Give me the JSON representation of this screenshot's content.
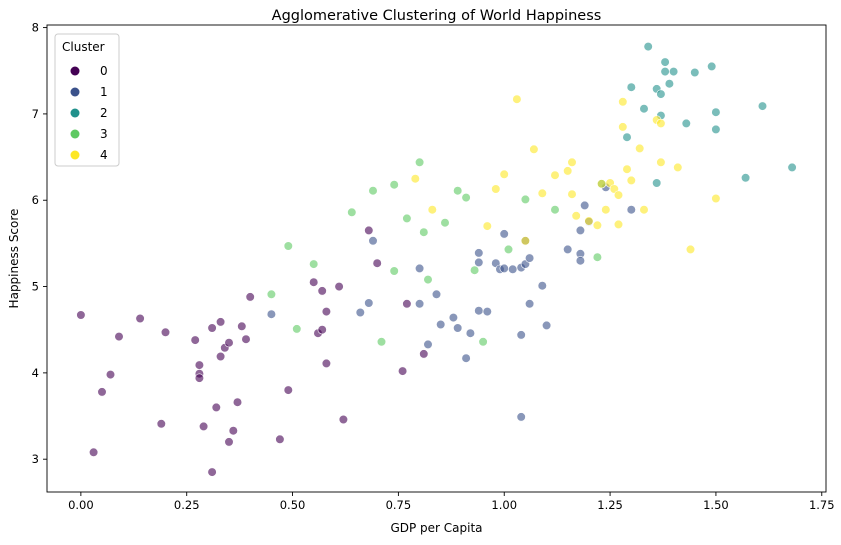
{
  "chart_data": {
    "type": "scatter",
    "title": "Agglomerative Clustering of World Happiness",
    "xlabel": "GDP per Capita",
    "ylabel": "Happiness Score",
    "xlim": [
      -0.08,
      1.76
    ],
    "ylim": [
      2.62,
      8.03
    ],
    "xticks": [
      0.0,
      0.25,
      0.5,
      0.75,
      1.0,
      1.25,
      1.5,
      1.75
    ],
    "xtick_labels": [
      "0.00",
      "0.25",
      "0.50",
      "0.75",
      "1.00",
      "1.25",
      "1.50",
      "1.75"
    ],
    "yticks": [
      3,
      4,
      5,
      6,
      7,
      8
    ],
    "ytick_labels": [
      "3",
      "4",
      "5",
      "6",
      "7",
      "8"
    ],
    "grid": false,
    "legend": {
      "title": "Cluster",
      "placement": "top-left"
    },
    "series": [
      {
        "name": "0",
        "color": "#440154",
        "points": [
          [
            0.0,
            4.67
          ],
          [
            0.03,
            3.08
          ],
          [
            0.05,
            3.78
          ],
          [
            0.07,
            3.98
          ],
          [
            0.09,
            4.42
          ],
          [
            0.14,
            4.63
          ],
          [
            0.19,
            3.41
          ],
          [
            0.2,
            4.47
          ],
          [
            0.27,
            4.38
          ],
          [
            0.28,
            4.09
          ],
          [
            0.28,
            3.99
          ],
          [
            0.28,
            3.94
          ],
          [
            0.29,
            3.38
          ],
          [
            0.31,
            4.52
          ],
          [
            0.31,
            2.85
          ],
          [
            0.32,
            3.6
          ],
          [
            0.33,
            4.59
          ],
          [
            0.33,
            4.19
          ],
          [
            0.34,
            4.29
          ],
          [
            0.35,
            4.35
          ],
          [
            0.35,
            3.2
          ],
          [
            0.36,
            3.33
          ],
          [
            0.37,
            3.66
          ],
          [
            0.38,
            4.54
          ],
          [
            0.39,
            4.39
          ],
          [
            0.4,
            4.88
          ],
          [
            0.47,
            3.23
          ],
          [
            0.49,
            3.8
          ],
          [
            0.55,
            5.05
          ],
          [
            0.56,
            4.46
          ],
          [
            0.57,
            4.5
          ],
          [
            0.57,
            4.95
          ],
          [
            0.58,
            4.71
          ],
          [
            0.58,
            4.11
          ],
          [
            0.61,
            5.0
          ],
          [
            0.62,
            3.46
          ],
          [
            0.68,
            5.65
          ],
          [
            0.7,
            5.27
          ],
          [
            0.76,
            4.02
          ],
          [
            0.77,
            4.8
          ],
          [
            0.81,
            4.22
          ]
        ]
      },
      {
        "name": "1",
        "color": "#3b528b",
        "points": [
          [
            0.45,
            4.68
          ],
          [
            0.66,
            4.7
          ],
          [
            0.68,
            4.81
          ],
          [
            0.69,
            5.53
          ],
          [
            0.8,
            5.21
          ],
          [
            0.8,
            4.8
          ],
          [
            0.82,
            4.33
          ],
          [
            0.84,
            4.91
          ],
          [
            0.85,
            4.56
          ],
          [
            0.88,
            4.64
          ],
          [
            0.89,
            4.52
          ],
          [
            0.91,
            4.17
          ],
          [
            0.92,
            4.46
          ],
          [
            0.94,
            5.39
          ],
          [
            0.94,
            5.28
          ],
          [
            0.94,
            4.72
          ],
          [
            0.96,
            4.71
          ],
          [
            0.98,
            5.27
          ],
          [
            0.99,
            5.2
          ],
          [
            1.0,
            5.61
          ],
          [
            1.0,
            5.21
          ],
          [
            1.02,
            5.2
          ],
          [
            1.04,
            5.22
          ],
          [
            1.04,
            4.44
          ],
          [
            1.04,
            3.49
          ],
          [
            1.05,
            5.26
          ],
          [
            1.05,
            5.53
          ],
          [
            1.06,
            5.33
          ],
          [
            1.06,
            4.8
          ],
          [
            1.09,
            5.01
          ],
          [
            1.1,
            4.55
          ],
          [
            1.15,
            5.43
          ],
          [
            1.18,
            5.38
          ],
          [
            1.18,
            5.3
          ],
          [
            1.18,
            5.65
          ],
          [
            1.19,
            5.94
          ],
          [
            1.2,
            5.75
          ],
          [
            1.24,
            6.15
          ],
          [
            1.3,
            5.89
          ]
        ]
      },
      {
        "name": "2",
        "color": "#21918c",
        "points": [
          [
            1.23,
            6.19
          ],
          [
            1.29,
            6.73
          ],
          [
            1.3,
            7.31
          ],
          [
            1.33,
            7.06
          ],
          [
            1.34,
            7.78
          ],
          [
            1.36,
            7.29
          ],
          [
            1.36,
            6.2
          ],
          [
            1.37,
            7.23
          ],
          [
            1.37,
            6.98
          ],
          [
            1.38,
            7.6
          ],
          [
            1.38,
            7.49
          ],
          [
            1.39,
            7.35
          ],
          [
            1.4,
            7.49
          ],
          [
            1.43,
            6.89
          ],
          [
            1.45,
            7.48
          ],
          [
            1.49,
            7.55
          ],
          [
            1.5,
            7.02
          ],
          [
            1.5,
            6.82
          ],
          [
            1.57,
            6.26
          ],
          [
            1.61,
            7.09
          ],
          [
            1.68,
            6.38
          ]
        ]
      },
      {
        "name": "3",
        "color": "#5ec962",
        "points": [
          [
            0.45,
            4.91
          ],
          [
            0.49,
            5.47
          ],
          [
            0.51,
            4.51
          ],
          [
            0.55,
            5.26
          ],
          [
            0.64,
            5.86
          ],
          [
            0.69,
            6.11
          ],
          [
            0.71,
            4.36
          ],
          [
            0.74,
            5.18
          ],
          [
            0.74,
            6.18
          ],
          [
            0.77,
            5.79
          ],
          [
            0.8,
            6.44
          ],
          [
            0.81,
            5.63
          ],
          [
            0.82,
            5.08
          ],
          [
            0.86,
            5.74
          ],
          [
            0.89,
            6.11
          ],
          [
            0.91,
            6.03
          ],
          [
            0.93,
            5.19
          ],
          [
            0.95,
            4.36
          ],
          [
            1.01,
            5.43
          ],
          [
            1.05,
            6.01
          ],
          [
            1.12,
            5.89
          ],
          [
            1.22,
            5.34
          ]
        ]
      },
      {
        "name": "4",
        "color": "#fde725",
        "points": [
          [
            0.79,
            6.25
          ],
          [
            0.83,
            5.89
          ],
          [
            0.96,
            5.7
          ],
          [
            0.98,
            6.13
          ],
          [
            1.0,
            6.3
          ],
          [
            1.03,
            7.17
          ],
          [
            1.05,
            5.53
          ],
          [
            1.07,
            6.59
          ],
          [
            1.09,
            6.08
          ],
          [
            1.12,
            6.29
          ],
          [
            1.15,
            6.34
          ],
          [
            1.16,
            6.44
          ],
          [
            1.16,
            6.07
          ],
          [
            1.17,
            5.82
          ],
          [
            1.2,
            5.76
          ],
          [
            1.22,
            5.71
          ],
          [
            1.23,
            6.19
          ],
          [
            1.24,
            5.89
          ],
          [
            1.25,
            6.2
          ],
          [
            1.26,
            6.13
          ],
          [
            1.27,
            6.06
          ],
          [
            1.27,
            5.72
          ],
          [
            1.28,
            6.85
          ],
          [
            1.28,
            7.14
          ],
          [
            1.29,
            6.36
          ],
          [
            1.3,
            6.23
          ],
          [
            1.32,
            6.6
          ],
          [
            1.33,
            5.89
          ],
          [
            1.36,
            6.93
          ],
          [
            1.37,
            6.44
          ],
          [
            1.37,
            6.89
          ],
          [
            1.41,
            6.38
          ],
          [
            1.44,
            5.43
          ],
          [
            1.5,
            6.02
          ]
        ]
      }
    ]
  }
}
